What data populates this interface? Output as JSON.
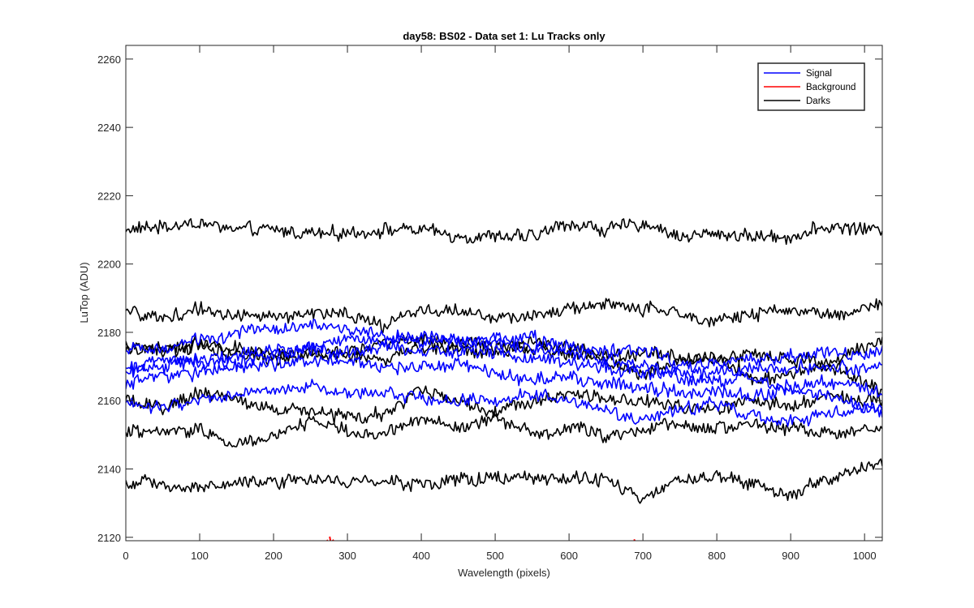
{
  "chart_data": {
    "type": "line",
    "title": "day58: BS02 - Data set 1: Lu Tracks only",
    "xlabel": "Wavelength (pixels)",
    "ylabel": "LuTop (ADU)",
    "xlim": [
      0,
      1024
    ],
    "ylim": [
      2119,
      2264
    ],
    "x_ticks": [
      0,
      100,
      200,
      300,
      400,
      500,
      600,
      700,
      800,
      900,
      1000
    ],
    "y_ticks": [
      2120,
      2140,
      2160,
      2180,
      2200,
      2220,
      2240,
      2260
    ],
    "grid": false,
    "legend_location": "top-right",
    "legend": [
      {
        "name": "Signal",
        "color": "#0000ff"
      },
      {
        "name": "Background",
        "color": "#ff0000"
      },
      {
        "name": "Darks",
        "color": "#000000"
      }
    ],
    "x_sample": [
      0,
      50,
      100,
      150,
      200,
      250,
      300,
      350,
      400,
      450,
      500,
      550,
      600,
      650,
      700,
      750,
      800,
      850,
      900,
      950,
      1024
    ],
    "series": [
      {
        "name": "Darks",
        "color": "#000000",
        "noise": 2.8,
        "values": [
          2210,
          2211,
          2212,
          2210,
          2210,
          2209,
          2209,
          2210,
          2210,
          2208,
          2208,
          2208,
          2212,
          2210,
          2212,
          2208,
          2209,
          2208,
          2208,
          2211,
          2210
        ]
      },
      {
        "name": "Darks",
        "color": "#000000",
        "noise": 2.8,
        "values": [
          2186,
          2184,
          2187,
          2185,
          2184,
          2186,
          2185,
          2182,
          2187,
          2186,
          2184,
          2185,
          2187,
          2188,
          2187,
          2185,
          2184,
          2185,
          2187,
          2185,
          2188
        ]
      },
      {
        "name": "Darks",
        "color": "#000000",
        "noise": 2.8,
        "values": [
          2176,
          2174,
          2177,
          2175,
          2172,
          2173,
          2174,
          2177,
          2178,
          2177,
          2176,
          2175,
          2174,
          2173,
          2174,
          2173,
          2172,
          2174,
          2172,
          2171,
          2178
        ]
      },
      {
        "name": "Darks",
        "color": "#000000",
        "noise": 2.8,
        "values": [
          2175,
          2176,
          2176,
          2174,
          2175,
          2174,
          2173,
          2172,
          2176,
          2175,
          2174,
          2177,
          2176,
          2172,
          2168,
          2172,
          2173,
          2166,
          2168,
          2170,
          2163
        ]
      },
      {
        "name": "Darks",
        "color": "#000000",
        "noise": 2.8,
        "values": [
          2160,
          2158,
          2162,
          2161,
          2157,
          2157,
          2155,
          2156,
          2163,
          2160,
          2157,
          2160,
          2162,
          2160,
          2160,
          2158,
          2157,
          2160,
          2158,
          2161,
          2160
        ]
      },
      {
        "name": "Darks",
        "color": "#000000",
        "noise": 2.8,
        "values": [
          2151,
          2150,
          2152,
          2147,
          2150,
          2154,
          2151,
          2150,
          2155,
          2152,
          2155,
          2150,
          2152,
          2150,
          2152,
          2153,
          2152,
          2153,
          2152,
          2150,
          2152
        ]
      },
      {
        "name": "Darks",
        "color": "#000000",
        "noise": 2.8,
        "values": [
          2136,
          2135,
          2134,
          2137,
          2136,
          2137,
          2136,
          2137,
          2135,
          2137,
          2137,
          2137,
          2137,
          2137,
          2131,
          2137,
          2138,
          2136,
          2132,
          2137,
          2142
        ]
      },
      {
        "name": "Signal",
        "color": "#0000ff",
        "noise": 2.8,
        "values": [
          2176,
          2175,
          2178,
          2180,
          2181,
          2182,
          2181,
          2179,
          2178,
          2177,
          2178,
          2178,
          2176,
          2175,
          2175,
          2170,
          2171,
          2172,
          2173,
          2174,
          2174
        ]
      },
      {
        "name": "Signal",
        "color": "#0000ff",
        "noise": 2.8,
        "values": [
          2170,
          2172,
          2171,
          2174,
          2175,
          2176,
          2178,
          2177,
          2179,
          2178,
          2177,
          2175,
          2174,
          2172,
          2170,
          2168,
          2168,
          2169,
          2170,
          2170,
          2169
        ]
      },
      {
        "name": "Signal",
        "color": "#0000ff",
        "noise": 2.8,
        "values": [
          2168,
          2170,
          2172,
          2171,
          2173,
          2175,
          2174,
          2176,
          2175,
          2174,
          2174,
          2172,
          2171,
          2170,
          2168,
          2167,
          2166,
          2166,
          2164,
          2166,
          2162
        ]
      },
      {
        "name": "Signal",
        "color": "#0000ff",
        "noise": 2.8,
        "values": [
          2165,
          2167,
          2168,
          2170,
          2171,
          2172,
          2171,
          2170,
          2170,
          2171,
          2168,
          2166,
          2167,
          2165,
          2164,
          2162,
          2163,
          2162,
          2163,
          2162,
          2156
        ]
      },
      {
        "name": "Signal",
        "color": "#0000ff",
        "noise": 2.8,
        "values": [
          2160,
          2158,
          2160,
          2162,
          2163,
          2164,
          2162,
          2163,
          2161,
          2160,
          2160,
          2162,
          2160,
          2158,
          2154,
          2158,
          2159,
          2155,
          2154,
          2156,
          2158
        ]
      },
      {
        "name": "Background",
        "color": "#ff0000",
        "noise": 0,
        "points": [
          [
            272,
            2119.2
          ],
          [
            276,
            2120.2
          ],
          [
            280,
            2119.3
          ],
          [
            688,
            2119.4
          ]
        ]
      }
    ]
  }
}
